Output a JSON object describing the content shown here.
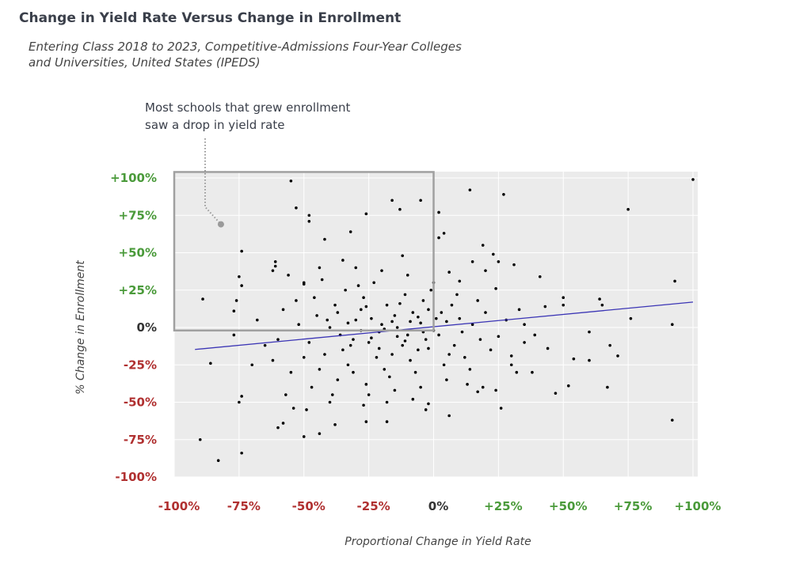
{
  "title": "Change in Yield Rate Versus Change in Enrollment",
  "subtitle_lines": [
    "Entering Class 2018 to 2023, Competitive-Admissions Four-Year Colleges",
    "and Universities, United States (IPEDS)"
  ],
  "annotation_lines": [
    "Most schools that grew enrollment",
    "saw a drop in yield rate"
  ],
  "colors": {
    "positive": "#4a9a3a",
    "negative": "#b03030",
    "zero": "#333333",
    "trend": "#3b35b5",
    "points": "#000000",
    "plot_bg": "#ebebeb",
    "highlight_box": "#a0a0a0"
  },
  "chart_data": {
    "type": "scatter",
    "title": "Change in Yield Rate Versus Change in Enrollment",
    "xlabel": "Proportional Change in Yield Rate",
    "ylabel": "% Change in Enrollment",
    "xlim": [
      -100,
      100
    ],
    "ylim": [
      -100,
      100
    ],
    "grid": true,
    "x_ticks": [
      {
        "value": -100,
        "label": "-100%"
      },
      {
        "value": -75,
        "label": "-75%"
      },
      {
        "value": -50,
        "label": "-50%"
      },
      {
        "value": -25,
        "label": "-25%"
      },
      {
        "value": 0,
        "label": "0%"
      },
      {
        "value": 25,
        "label": "+25%"
      },
      {
        "value": 50,
        "label": "+50%"
      },
      {
        "value": 75,
        "label": "+75%"
      },
      {
        "value": 100,
        "label": "+100%"
      }
    ],
    "y_ticks": [
      {
        "value": 100,
        "label": "+100%"
      },
      {
        "value": 75,
        "label": "+75%"
      },
      {
        "value": 50,
        "label": "+50%"
      },
      {
        "value": 25,
        "label": "+25%"
      },
      {
        "value": 0,
        "label": "0%"
      },
      {
        "value": -25,
        "label": "-25%"
      },
      {
        "value": -50,
        "label": "-50%"
      },
      {
        "value": -75,
        "label": "-75%"
      },
      {
        "value": -100,
        "label": "-100%"
      }
    ],
    "trend_line": {
      "x": [
        -92,
        100
      ],
      "y": [
        -14.7,
        17.0
      ]
    },
    "highlight_box": {
      "x": [
        -100,
        0
      ],
      "y": [
        -2,
        104
      ]
    },
    "annotation_point": {
      "x": -82,
      "y": 69
    },
    "points": [
      [
        -55,
        98
      ],
      [
        -53,
        80
      ],
      [
        -48,
        75
      ],
      [
        -48,
        71
      ],
      [
        -26,
        76
      ],
      [
        -16,
        85
      ],
      [
        -13,
        79
      ],
      [
        -5,
        85
      ],
      [
        2,
        77
      ],
      [
        14,
        92
      ],
      [
        27,
        89
      ],
      [
        75,
        79
      ],
      [
        100,
        99
      ],
      [
        -89,
        19
      ],
      [
        -77,
        11
      ],
      [
        -76,
        18
      ],
      [
        -74,
        51
      ],
      [
        -75,
        34
      ],
      [
        -74,
        28
      ],
      [
        -77,
        -5
      ],
      [
        -86,
        -24
      ],
      [
        -90,
        -75
      ],
      [
        -83,
        -89
      ],
      [
        -74,
        -84
      ],
      [
        -74,
        -46
      ],
      [
        -75,
        -50
      ],
      [
        -61,
        44
      ],
      [
        -61,
        41
      ],
      [
        -62,
        38
      ],
      [
        -50,
        29
      ],
      [
        -42,
        59
      ],
      [
        -32,
        64
      ],
      [
        -54,
        -54
      ],
      [
        -58,
        -64
      ],
      [
        -60,
        -67
      ],
      [
        -50,
        -73
      ],
      [
        -44,
        -71
      ],
      [
        -38,
        -65
      ],
      [
        -26,
        -63
      ],
      [
        -18,
        -63
      ],
      [
        -2,
        -51
      ],
      [
        6,
        -59
      ],
      [
        17,
        -43
      ],
      [
        24,
        -42
      ],
      [
        26,
        -54
      ],
      [
        30,
        -19
      ],
      [
        32,
        -30
      ],
      [
        41,
        34
      ],
      [
        47,
        -44
      ],
      [
        50,
        20
      ],
      [
        50,
        15
      ],
      [
        52,
        -39
      ],
      [
        54,
        -21
      ],
      [
        60,
        -3
      ],
      [
        60,
        -22
      ],
      [
        64,
        19
      ],
      [
        65,
        15
      ],
      [
        67,
        -40
      ],
      [
        68,
        -12
      ],
      [
        71,
        -19
      ],
      [
        76,
        6
      ],
      [
        93,
        31
      ],
      [
        92,
        -62
      ],
      [
        92,
        2
      ],
      [
        23,
        49
      ],
      [
        25,
        44
      ],
      [
        31,
        42
      ],
      [
        15,
        44
      ],
      [
        6,
        37
      ],
      [
        10,
        31
      ],
      [
        19,
        55
      ],
      [
        2,
        60
      ],
      [
        4,
        63
      ],
      [
        20,
        38
      ],
      [
        43,
        14
      ],
      [
        39,
        -5
      ],
      [
        44,
        -14
      ],
      [
        35,
        2
      ],
      [
        -30,
        5
      ],
      [
        -25,
        -10
      ],
      [
        -20,
        2
      ],
      [
        -15,
        8
      ],
      [
        -10,
        -5
      ],
      [
        -5,
        3
      ],
      [
        -35,
        -15
      ],
      [
        -28,
        12
      ],
      [
        -22,
        -20
      ],
      [
        -18,
        15
      ],
      [
        -12,
        -12
      ],
      [
        -8,
        10
      ],
      [
        -3,
        -8
      ],
      [
        -40,
        0
      ],
      [
        -33,
        -25
      ],
      [
        -27,
        20
      ],
      [
        -21,
        -3
      ],
      [
        -16,
        -18
      ],
      [
        -11,
        22
      ],
      [
        -6,
        -15
      ],
      [
        -2,
        12
      ],
      [
        2,
        -5
      ],
      [
        5,
        4
      ],
      [
        8,
        -12
      ],
      [
        10,
        6
      ],
      [
        12,
        -20
      ],
      [
        15,
        2
      ],
      [
        18,
        -8
      ],
      [
        -45,
        8
      ],
      [
        -42,
        -18
      ],
      [
        -38,
        15
      ],
      [
        -36,
        -5
      ],
      [
        -31,
        -30
      ],
      [
        -29,
        28
      ],
      [
        -24,
        -7
      ],
      [
        -19,
        -28
      ],
      [
        -14,
        0
      ],
      [
        -9,
        -22
      ],
      [
        -4,
        18
      ],
      [
        0,
        -2
      ],
      [
        3,
        10
      ],
      [
        6,
        -18
      ],
      [
        -48,
        -10
      ],
      [
        -46,
        20
      ],
      [
        -44,
        -28
      ],
      [
        -41,
        5
      ],
      [
        -37,
        -35
      ],
      [
        -34,
        25
      ],
      [
        -32,
        -12
      ],
      [
        -26,
        -38
      ],
      [
        -23,
        30
      ],
      [
        -17,
        -33
      ],
      [
        -13,
        16
      ],
      [
        -7,
        -30
      ],
      [
        -1,
        25
      ],
      [
        4,
        -25
      ],
      [
        7,
        15
      ],
      [
        11,
        -3
      ],
      [
        14,
        -28
      ],
      [
        20,
        10
      ],
      [
        22,
        -15
      ],
      [
        25,
        -6
      ],
      [
        28,
        5
      ],
      [
        -50,
        -20
      ],
      [
        -52,
        2
      ],
      [
        -55,
        -30
      ],
      [
        -58,
        12
      ],
      [
        -60,
        -8
      ],
      [
        -62,
        -22
      ],
      [
        -53,
        18
      ],
      [
        -47,
        -40
      ],
      [
        -43,
        32
      ],
      [
        -39,
        -45
      ],
      [
        -30,
        40
      ],
      [
        -25,
        -45
      ],
      [
        -20,
        38
      ],
      [
        -15,
        -42
      ],
      [
        -10,
        35
      ],
      [
        -5,
        -40
      ],
      [
        0,
        30
      ],
      [
        5,
        -35
      ],
      [
        9,
        22
      ],
      [
        13,
        -38
      ],
      [
        17,
        18
      ],
      [
        -33,
        3
      ],
      [
        -28,
        -2
      ],
      [
        -24,
        6
      ],
      [
        -19,
        -1
      ],
      [
        -14,
        -6
      ],
      [
        -9,
        4
      ],
      [
        -4,
        -3
      ],
      [
        -37,
        10
      ],
      [
        -31,
        -8
      ],
      [
        -26,
        14
      ],
      [
        -21,
        -14
      ],
      [
        -16,
        4
      ],
      [
        -11,
        -9
      ],
      [
        -6,
        7
      ],
      [
        -2,
        -14
      ],
      [
        1,
        6
      ],
      [
        -65,
        -12
      ],
      [
        -68,
        5
      ],
      [
        -70,
        -25
      ],
      [
        -57,
        -45
      ],
      [
        -49,
        -55
      ],
      [
        -40,
        -50
      ],
      [
        -35,
        45
      ],
      [
        -27,
        -52
      ],
      [
        -18,
        -50
      ],
      [
        -12,
        48
      ],
      [
        -8,
        -48
      ],
      [
        -3,
        -55
      ],
      [
        30,
        -25
      ],
      [
        33,
        12
      ],
      [
        35,
        -10
      ],
      [
        38,
        -30
      ],
      [
        24,
        26
      ],
      [
        19,
        -40
      ],
      [
        -44,
        40
      ],
      [
        -50,
        30
      ],
      [
        -56,
        35
      ]
    ]
  }
}
